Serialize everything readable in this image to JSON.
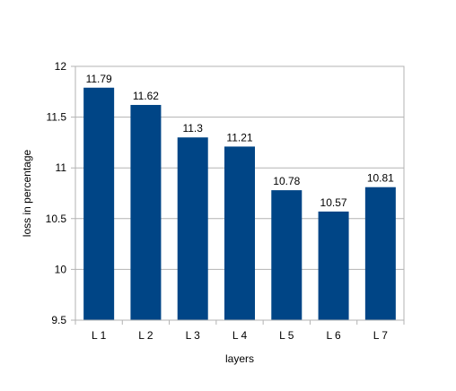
{
  "chart_data": {
    "type": "bar",
    "categories": [
      "L 1",
      "L 2",
      "L 3",
      "L 4",
      "L 5",
      "L 6",
      "L 7"
    ],
    "values": [
      11.79,
      11.62,
      11.3,
      11.21,
      10.78,
      10.57,
      10.81
    ],
    "data_labels": [
      "11.79",
      "11.62",
      "11.3",
      "11.21",
      "10.78",
      "10.57",
      "10.81"
    ],
    "xlabel": "layers",
    "ylabel": "loss in percentage",
    "ylim": [
      9.5,
      12
    ],
    "yticks": [
      "9.5",
      "10",
      "10.5",
      "11",
      "11.5",
      "12"
    ],
    "grid": true,
    "legend": "none",
    "bar_color": "#004586",
    "grid_color": "#b3b3b3"
  }
}
